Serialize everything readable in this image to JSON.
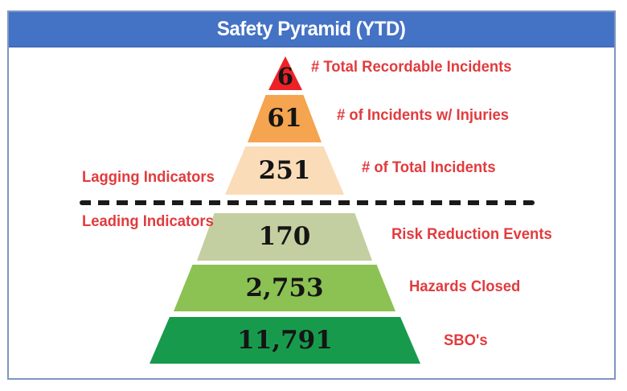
{
  "header": {
    "title": "Safety Pyramid (YTD)"
  },
  "section_labels": {
    "lagging": "Lagging Indicators",
    "leading": "Leading Indicators"
  },
  "chart_data": {
    "type": "pyramid",
    "title": "Safety Pyramid (YTD)",
    "period": "YTD",
    "divider": {
      "style": "black dashed horizontal line",
      "separates_top": "Lagging Indicators",
      "separates_bottom": "Leading Indicators"
    },
    "levels": [
      {
        "rank": 1,
        "value": 6,
        "display_value": "6",
        "label": "# Total Recordable Incidents",
        "color": "#EC2227",
        "group": "lagging"
      },
      {
        "rank": 2,
        "value": 61,
        "display_value": "61",
        "label": "# of Incidents w/ Injuries",
        "color": "#F5A44F",
        "group": "lagging"
      },
      {
        "rank": 3,
        "value": 251,
        "display_value": "251",
        "label": "# of Total Incidents",
        "color": "#FADCB8",
        "group": "lagging"
      },
      {
        "rank": 4,
        "value": 170,
        "display_value": "170",
        "label": "Risk Reduction Events",
        "color": "#C4CFA1",
        "group": "leading"
      },
      {
        "rank": 5,
        "value": 2753,
        "display_value": "2,753",
        "label": "Hazards Closed",
        "color": "#8CC153",
        "group": "leading"
      },
      {
        "rank": 6,
        "value": 11791,
        "display_value": "11,791",
        "label": "SBO's",
        "color": "#189A4D",
        "group": "leading"
      }
    ]
  },
  "colors": {
    "header_bg": "#4472C4",
    "header_text": "#FFFFFF",
    "panel_border": "#7E96C4",
    "label_text": "#E23B3E",
    "value_text": "#151515",
    "divider": "#1A1A1A"
  }
}
